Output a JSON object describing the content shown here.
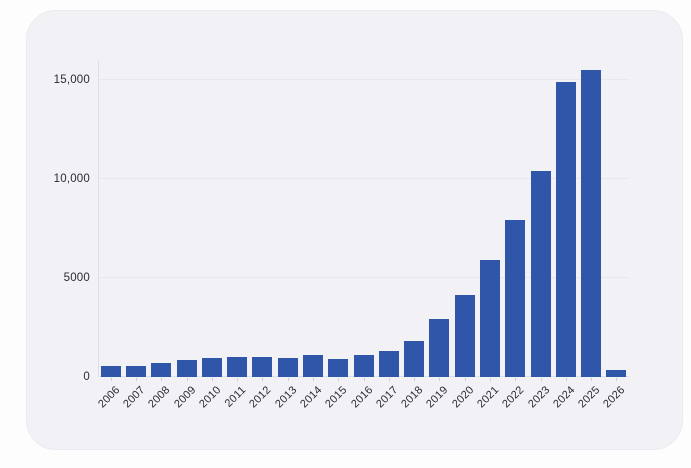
{
  "chart_data": {
    "type": "bar",
    "title": "",
    "xlabel": "",
    "ylabel": "",
    "categories": [
      "2006",
      "2007",
      "2008",
      "2009",
      "2010",
      "2011",
      "2012",
      "2013",
      "2014",
      "2015",
      "2016",
      "2017",
      "2018",
      "2019",
      "2020",
      "2021",
      "2022",
      "2023",
      "2024",
      "2025",
      "2026"
    ],
    "values": [
      550,
      570,
      710,
      860,
      960,
      1010,
      990,
      970,
      1090,
      910,
      1120,
      1310,
      1800,
      2950,
      4120,
      5900,
      7900,
      10400,
      14900,
      15500,
      330
    ],
    "ylim": [
      0,
      16000
    ],
    "y_ticks": [
      {
        "value": 0,
        "label": "0"
      },
      {
        "value": 5000,
        "label": "5000"
      },
      {
        "value": 10000,
        "label": "10,000"
      },
      {
        "value": 15000,
        "label": "15,000"
      }
    ],
    "grid": "horizontal",
    "legend": "none",
    "x_tick_rotation_deg": -45
  },
  "colors": {
    "bar": "#2f56a8",
    "card_background": "#f2f2f6",
    "page_background": "#fdfdfe",
    "card_border": "#eaeaf0",
    "gridline": "#e7e8ec",
    "axis_line": "#dfe0e5",
    "tick_mark": "#cfd0d6",
    "label_text": "#2b2b31"
  }
}
